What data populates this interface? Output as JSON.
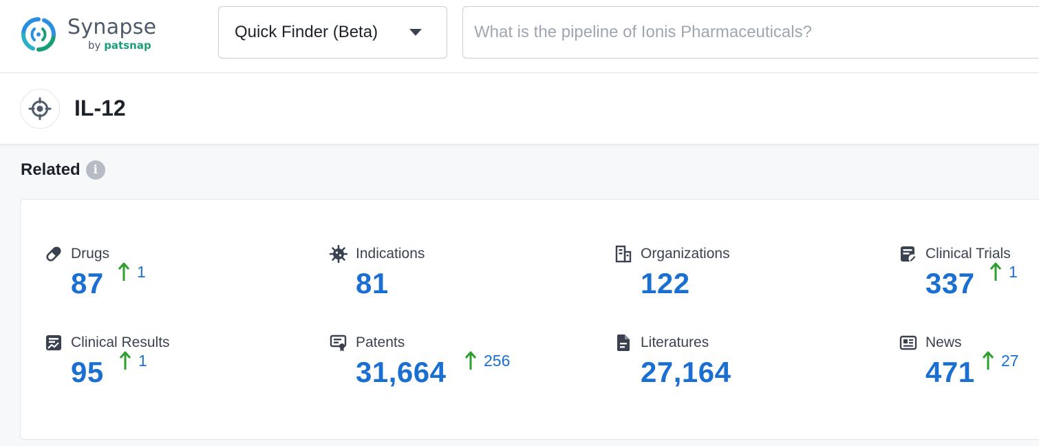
{
  "header": {
    "logo_name": "Synapse",
    "logo_by": "by",
    "logo_brand": "patsnap",
    "finder_selected": "Quick Finder (Beta)",
    "search_placeholder": "What is the pipeline of Ionis Pharmaceuticals?",
    "search_value": ""
  },
  "entity": {
    "icon": "target-icon",
    "title": "IL-12"
  },
  "related": {
    "title": "Related",
    "info_icon": "info-icon",
    "info_glyph": "i",
    "stats": [
      {
        "label": "Drugs",
        "icon": "pill-icon",
        "value": "87",
        "delta": "1"
      },
      {
        "label": "Indications",
        "icon": "virus-icon",
        "value": "81",
        "delta": null
      },
      {
        "label": "Organizations",
        "icon": "building-icon",
        "value": "122",
        "delta": null
      },
      {
        "label": "Clinical Trials",
        "icon": "clipboard-edit-icon",
        "value": "337",
        "delta": "1"
      },
      {
        "label": "Clinical Results",
        "icon": "report-chart-icon",
        "value": "95",
        "delta": "1"
      },
      {
        "label": "Patents",
        "icon": "certificate-icon",
        "value": "31,664",
        "delta": "256"
      },
      {
        "label": "Literatures",
        "icon": "document-icon",
        "value": "27,164",
        "delta": null
      },
      {
        "label": "News",
        "icon": "newspaper-icon",
        "value": "471",
        "delta": "27"
      }
    ]
  },
  "colors": {
    "accent_blue": "#1a6fd0",
    "increase_green": "#2e9e2e",
    "icon_gray": "#3a4251",
    "logo_teal": "#1b9e77",
    "logo_blue": "#2a8fe0"
  }
}
